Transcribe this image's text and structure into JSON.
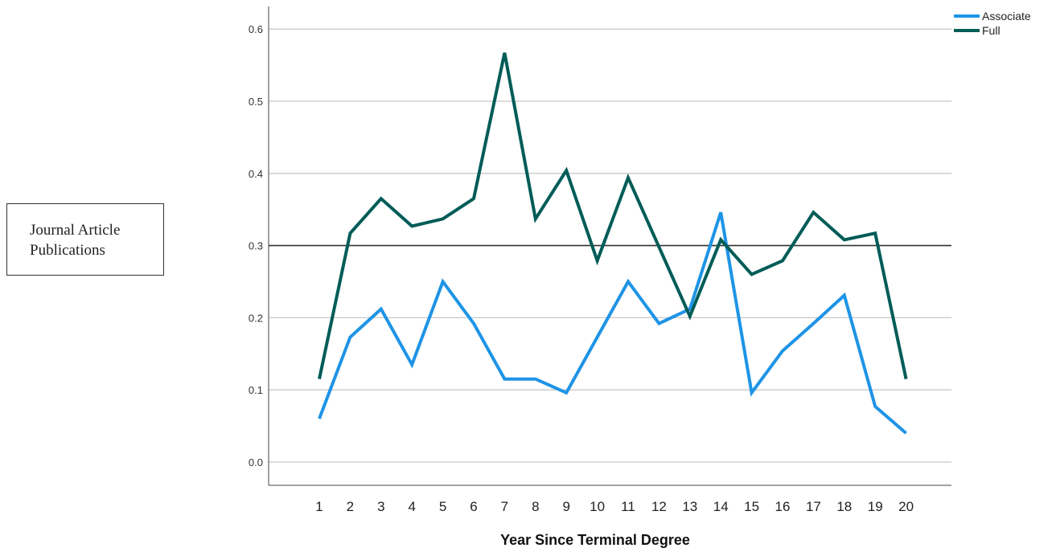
{
  "chart_data": {
    "type": "line",
    "title": "",
    "xlabel": "Year Since Terminal  Degree",
    "ylabel": "Journal Article Publications",
    "x": [
      1,
      2,
      3,
      4,
      5,
      6,
      7,
      8,
      9,
      10,
      11,
      12,
      13,
      14,
      15,
      16,
      17,
      18,
      19,
      20
    ],
    "x_tick_labels": [
      "1",
      "2",
      "3",
      "4",
      "5",
      "6",
      "7",
      "8",
      "9",
      "10",
      "11",
      "12",
      "13",
      "14",
      "15",
      "16",
      "17",
      "18",
      "19",
      "20"
    ],
    "ylim": [
      -0.03,
      0.63
    ],
    "y_ticks": [
      0.0,
      0.1,
      0.2,
      0.3,
      0.4,
      0.5,
      0.6
    ],
    "y_tick_labels": [
      "0.0",
      "0.1",
      "0.2",
      "0.3",
      "0.4",
      "0.5",
      "0.6"
    ],
    "reference_line": 0.3,
    "grid": true,
    "legend_position": "top-right",
    "series": [
      {
        "name": "Associate",
        "color": "#1e94e6",
        "values": [
          0.06,
          0.173,
          0.212,
          0.135,
          0.25,
          0.192,
          0.115,
          0.115,
          0.096,
          0.173,
          0.25,
          0.192,
          0.212,
          0.346,
          0.096,
          0.154,
          0.192,
          0.231,
          0.077,
          0.04
        ]
      },
      {
        "name": "Full",
        "color": "#005c58",
        "values": [
          0.115,
          0.317,
          0.365,
          0.327,
          0.337,
          0.365,
          0.567,
          0.337,
          0.404,
          0.279,
          0.394,
          0.298,
          0.202,
          0.308,
          0.26,
          0.279,
          0.346,
          0.308,
          0.317,
          0.115
        ]
      }
    ]
  }
}
